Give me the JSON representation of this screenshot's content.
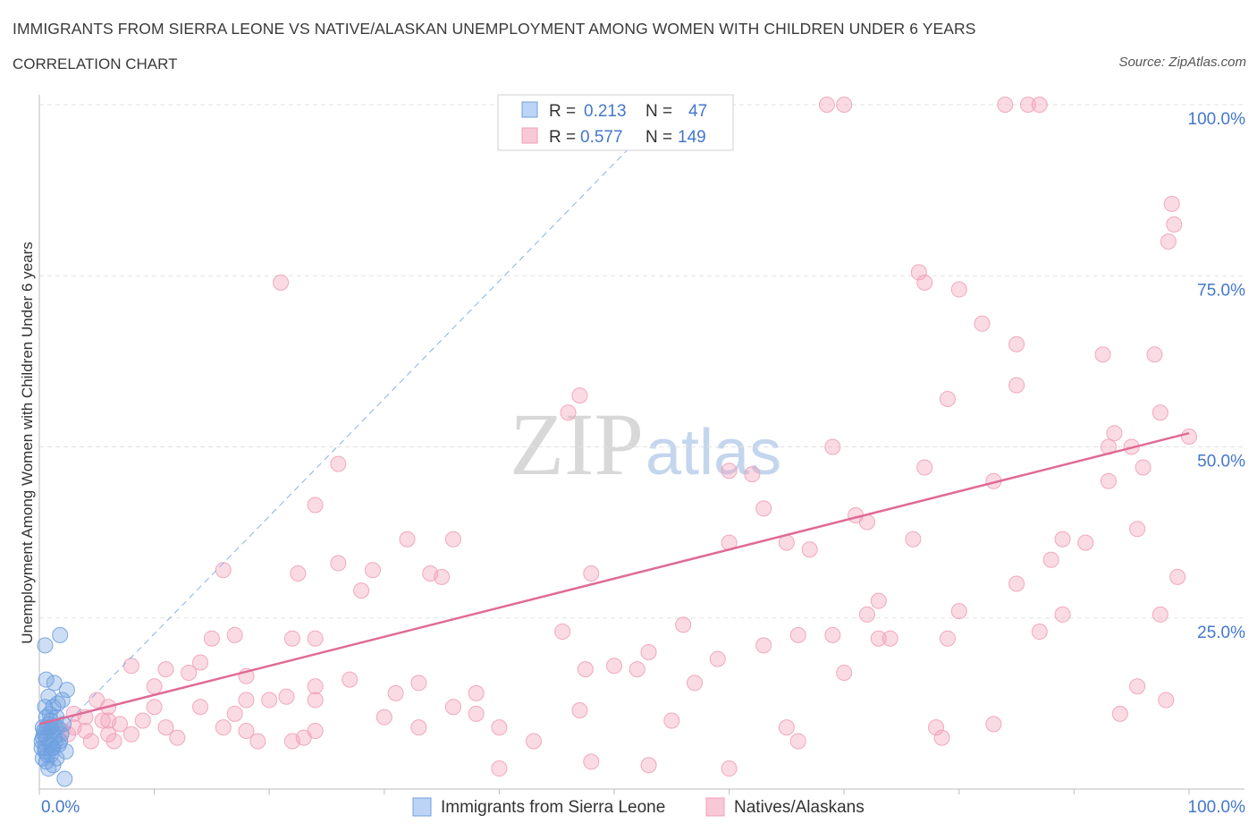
{
  "title": "IMMIGRANTS FROM SIERRA LEONE VS NATIVE/ALASKAN UNEMPLOYMENT AMONG WOMEN WITH CHILDREN UNDER 6 YEARS",
  "subtitle": "CORRELATION CHART",
  "source": "Source: ZipAtlas.com",
  "watermark": {
    "zip": "ZIP",
    "atlas": "atlas"
  },
  "legend_box": {
    "rows": [
      {
        "r_label": "R =",
        "r_value": "0.213",
        "n_label": "N =",
        "n_value": "47"
      },
      {
        "r_label": "R =",
        "r_value": "0.577",
        "n_label": "N =",
        "n_value": "149"
      }
    ]
  },
  "chart_data": {
    "type": "scatter",
    "xlabel": "",
    "ylabel": "Unemployment Among Women with Children Under 6 years",
    "xlim": [
      0,
      100
    ],
    "ylim": [
      0,
      100
    ],
    "x_tick_labels": [
      "0.0%",
      "100.0%"
    ],
    "y_tick_labels": [
      "25.0%",
      "50.0%",
      "75.0%",
      "100.0%"
    ],
    "y_ticks": [
      25,
      50,
      75,
      100
    ],
    "grid": true,
    "legend_position": "bottom",
    "colors": {
      "blue": "#6fa0e0",
      "pink": "#f1a0b8",
      "pink_line": "#e06a96",
      "blue_line": "#8ab0e8",
      "axis_text": "#4477cc"
    },
    "series": [
      {
        "name": "Immigrants from Sierra Leone",
        "color": "#6fa0e0",
        "trend": {
          "x": [
            0,
            55
          ],
          "y": [
            5.5,
            100
          ],
          "style": "dashed"
        },
        "points": [
          [
            0.5,
            21
          ],
          [
            1.8,
            22.5
          ],
          [
            0.6,
            16
          ],
          [
            1.3,
            15.5
          ],
          [
            2.4,
            14.5
          ],
          [
            0.8,
            13.5
          ],
          [
            2.0,
            13
          ],
          [
            1.2,
            12
          ],
          [
            0.5,
            12
          ],
          [
            1.5,
            10.5
          ],
          [
            1.0,
            10
          ],
          [
            0.3,
            9
          ],
          [
            0.8,
            9.5
          ],
          [
            1.6,
            9
          ],
          [
            2.1,
            9.5
          ],
          [
            0.4,
            8
          ],
          [
            1.1,
            8.5
          ],
          [
            1.9,
            8
          ],
          [
            0.6,
            7.5
          ],
          [
            1.4,
            7
          ],
          [
            0.2,
            7
          ],
          [
            0.9,
            6.5
          ],
          [
            1.7,
            6.5
          ],
          [
            0.5,
            6
          ],
          [
            1.2,
            6
          ],
          [
            2.3,
            5.5
          ],
          [
            0.7,
            5
          ],
          [
            1.0,
            5
          ],
          [
            0.3,
            4.5
          ],
          [
            1.5,
            4.5
          ],
          [
            0.6,
            4
          ],
          [
            1.2,
            3.5
          ],
          [
            0.8,
            3
          ],
          [
            2.2,
            1.5
          ],
          [
            0.4,
            8.5
          ],
          [
            1.3,
            7.5
          ],
          [
            0.9,
            11
          ],
          [
            1.6,
            12.5
          ],
          [
            0.7,
            9
          ],
          [
            1.1,
            6
          ],
          [
            0.5,
            5.5
          ],
          [
            1.8,
            7
          ],
          [
            0.2,
            6
          ],
          [
            1.4,
            9
          ],
          [
            0.6,
            10.5
          ],
          [
            1.0,
            8
          ],
          [
            0.3,
            7.5
          ]
        ]
      },
      {
        "name": "Natives/Alaskans",
        "color": "#f1a0b8",
        "trend": {
          "x": [
            0,
            100
          ],
          "y": [
            9.5,
            52
          ],
          "style": "solid"
        },
        "points": [
          [
            56.5,
            100
          ],
          [
            68.5,
            100
          ],
          [
            70,
            100
          ],
          [
            84,
            100
          ],
          [
            86,
            100
          ],
          [
            87,
            100
          ],
          [
            98.5,
            85.5
          ],
          [
            98.7,
            82.5
          ],
          [
            98.2,
            80
          ],
          [
            21,
            74
          ],
          [
            77,
            74
          ],
          [
            80,
            73
          ],
          [
            82,
            68
          ],
          [
            76.5,
            75.5
          ],
          [
            85,
            65
          ],
          [
            92.5,
            63.5
          ],
          [
            97,
            63.5
          ],
          [
            85,
            59
          ],
          [
            79,
            57
          ],
          [
            47,
            57.5
          ],
          [
            46,
            55
          ],
          [
            97.5,
            55
          ],
          [
            93.5,
            52
          ],
          [
            93,
            50
          ],
          [
            95,
            50
          ],
          [
            69,
            50
          ],
          [
            100,
            51.5
          ],
          [
            62,
            46
          ],
          [
            60,
            46.5
          ],
          [
            77,
            47
          ],
          [
            96,
            47
          ],
          [
            93,
            45
          ],
          [
            83,
            45
          ],
          [
            26,
            47.5
          ],
          [
            24,
            41.5
          ],
          [
            63,
            41
          ],
          [
            71,
            40
          ],
          [
            72,
            39
          ],
          [
            95.5,
            38
          ],
          [
            91,
            36
          ],
          [
            32,
            36.5
          ],
          [
            36,
            36.5
          ],
          [
            76,
            36.5
          ],
          [
            89,
            36.5
          ],
          [
            65,
            36
          ],
          [
            60,
            36
          ],
          [
            67,
            35
          ],
          [
            88,
            33.5
          ],
          [
            26,
            33
          ],
          [
            22.5,
            31.5
          ],
          [
            29,
            32
          ],
          [
            35,
            31
          ],
          [
            34,
            31.5
          ],
          [
            48,
            31.5
          ],
          [
            16,
            32
          ],
          [
            99,
            31
          ],
          [
            85,
            30
          ],
          [
            28,
            29
          ],
          [
            73,
            27.5
          ],
          [
            80,
            26
          ],
          [
            72,
            25.5
          ],
          [
            97.5,
            25.5
          ],
          [
            89,
            25.5
          ],
          [
            17,
            22.5
          ],
          [
            15,
            22
          ],
          [
            22,
            22
          ],
          [
            24,
            22
          ],
          [
            56,
            24
          ],
          [
            87,
            23
          ],
          [
            73,
            22
          ],
          [
            74,
            22
          ],
          [
            79,
            22
          ],
          [
            66,
            22.5
          ],
          [
            69,
            22.5
          ],
          [
            63,
            21
          ],
          [
            53,
            20
          ],
          [
            59,
            19
          ],
          [
            50,
            18
          ],
          [
            52,
            17.5
          ],
          [
            11,
            17.5
          ],
          [
            13,
            17
          ],
          [
            18,
            16.5
          ],
          [
            8,
            18
          ],
          [
            27,
            16
          ],
          [
            24,
            15
          ],
          [
            31,
            14
          ],
          [
            33,
            15.5
          ],
          [
            38,
            14
          ],
          [
            10,
            15
          ],
          [
            18,
            13
          ],
          [
            20,
            13
          ],
          [
            21.5,
            13.5
          ],
          [
            24,
            13
          ],
          [
            6,
            12
          ],
          [
            5,
            13
          ],
          [
            10,
            12
          ],
          [
            14,
            12
          ],
          [
            17,
            11
          ],
          [
            3,
            11
          ],
          [
            4,
            10.5
          ],
          [
            9,
            10
          ],
          [
            6,
            10
          ],
          [
            5.5,
            10
          ],
          [
            7,
            9.5
          ],
          [
            11,
            9
          ],
          [
            16,
            9
          ],
          [
            18,
            8.5
          ],
          [
            24,
            8.5
          ],
          [
            3,
            9
          ],
          [
            1,
            9
          ],
          [
            2,
            8.5
          ],
          [
            4,
            8.5
          ],
          [
            6,
            8
          ],
          [
            8,
            8
          ],
          [
            12,
            7.5
          ],
          [
            19,
            7
          ],
          [
            22,
            7
          ],
          [
            23,
            7.5
          ],
          [
            4.5,
            7
          ],
          [
            6.5,
            7
          ],
          [
            2.5,
            8
          ],
          [
            36,
            12
          ],
          [
            30,
            10.5
          ],
          [
            40,
            9
          ],
          [
            38,
            11
          ],
          [
            47,
            11.5
          ],
          [
            55,
            10
          ],
          [
            65,
            9
          ],
          [
            78,
            9
          ],
          [
            83,
            9.5
          ],
          [
            94,
            11
          ],
          [
            95.5,
            15
          ],
          [
            98,
            13
          ],
          [
            66,
            7
          ],
          [
            78.5,
            7.5
          ],
          [
            33,
            9
          ],
          [
            40,
            3
          ],
          [
            48,
            4
          ],
          [
            53,
            3.5
          ],
          [
            60,
            3
          ],
          [
            43,
            7
          ],
          [
            70,
            17
          ],
          [
            57,
            15.5
          ],
          [
            45.5,
            23
          ],
          [
            47.5,
            17.5
          ],
          [
            14,
            18.5
          ]
        ]
      }
    ]
  },
  "bottom_legend": [
    {
      "label": "Immigrants from Sierra Leone",
      "color": "#6fa0e0"
    },
    {
      "label": "Natives/Alaskans",
      "color": "#f1a0b8"
    }
  ]
}
